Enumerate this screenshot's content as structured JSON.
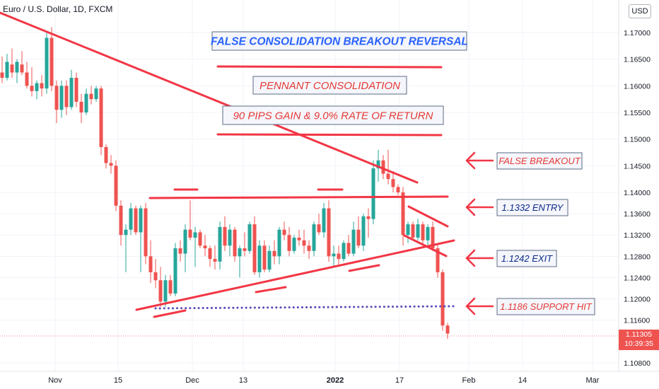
{
  "header": {
    "symbol_title": "Euro / U.S. Dollar, 1D, FXCM",
    "currency_button": "USD"
  },
  "last_price": {
    "value": "1.11305",
    "countdown": "10:39:35"
  },
  "colors": {
    "up": "#26a69a",
    "down": "#ef5350",
    "annotation_red": "#f23645",
    "support_dots": "#5b4ab5",
    "box_text_blue": "#2962ff",
    "box_text_red": "#e53935",
    "box_text_navy": "#0d2a8a"
  },
  "chart_data": {
    "type": "candlestick",
    "title": "FALSE CONSOLIDATION BREAKOUT REVERSAL",
    "y_axis": {
      "ticks": [
        "1.17000",
        "1.16500",
        "1.16000",
        "1.15500",
        "1.15000",
        "1.14500",
        "1.14000",
        "1.13600",
        "1.13200",
        "1.12800",
        "1.12400",
        "1.12000",
        "1.11600",
        "1.10800"
      ]
    },
    "x_axis": {
      "ticks": [
        "Nov",
        "15",
        "Dec",
        "13",
        "2022",
        "17",
        "Feb",
        "14",
        "Mar"
      ]
    },
    "ohlc": [
      {
        "o": 1.1625,
        "h": 1.1655,
        "l": 1.1605,
        "c": 1.1615
      },
      {
        "o": 1.1615,
        "h": 1.166,
        "l": 1.161,
        "c": 1.1645
      },
      {
        "o": 1.164,
        "h": 1.167,
        "l": 1.1615,
        "c": 1.1625
      },
      {
        "o": 1.1625,
        "h": 1.165,
        "l": 1.1605,
        "c": 1.1645
      },
      {
        "o": 1.164,
        "h": 1.1665,
        "l": 1.162,
        "c": 1.1625
      },
      {
        "o": 1.1625,
        "h": 1.1645,
        "l": 1.1595,
        "c": 1.16
      },
      {
        "o": 1.16,
        "h": 1.1635,
        "l": 1.158,
        "c": 1.159
      },
      {
        "o": 1.159,
        "h": 1.161,
        "l": 1.1575,
        "c": 1.1605
      },
      {
        "o": 1.1605,
        "h": 1.162,
        "l": 1.158,
        "c": 1.1595
      },
      {
        "o": 1.1595,
        "h": 1.17,
        "l": 1.1585,
        "c": 1.169
      },
      {
        "o": 1.169,
        "h": 1.171,
        "l": 1.159,
        "c": 1.16
      },
      {
        "o": 1.16,
        "h": 1.161,
        "l": 1.153,
        "c": 1.1555
      },
      {
        "o": 1.1555,
        "h": 1.161,
        "l": 1.154,
        "c": 1.16
      },
      {
        "o": 1.16,
        "h": 1.161,
        "l": 1.1545,
        "c": 1.156
      },
      {
        "o": 1.156,
        "h": 1.163,
        "l": 1.1555,
        "c": 1.1615
      },
      {
        "o": 1.1615,
        "h": 1.1625,
        "l": 1.156,
        "c": 1.157
      },
      {
        "o": 1.157,
        "h": 1.1585,
        "l": 1.153,
        "c": 1.155
      },
      {
        "o": 1.155,
        "h": 1.1595,
        "l": 1.1545,
        "c": 1.1585
      },
      {
        "o": 1.1585,
        "h": 1.16,
        "l": 1.1565,
        "c": 1.1575
      },
      {
        "o": 1.1575,
        "h": 1.16,
        "l": 1.157,
        "c": 1.1595
      },
      {
        "o": 1.1595,
        "h": 1.16,
        "l": 1.147,
        "c": 1.1485
      },
      {
        "o": 1.1485,
        "h": 1.149,
        "l": 1.1445,
        "c": 1.1455
      },
      {
        "o": 1.1455,
        "h": 1.147,
        "l": 1.1435,
        "c": 1.145
      },
      {
        "o": 1.145,
        "h": 1.146,
        "l": 1.1365,
        "c": 1.1375
      },
      {
        "o": 1.1375,
        "h": 1.1385,
        "l": 1.13,
        "c": 1.132
      },
      {
        "o": 1.132,
        "h": 1.134,
        "l": 1.125,
        "c": 1.133
      },
      {
        "o": 1.133,
        "h": 1.138,
        "l": 1.132,
        "c": 1.137
      },
      {
        "o": 1.137,
        "h": 1.1375,
        "l": 1.132,
        "c": 1.1325
      },
      {
        "o": 1.1325,
        "h": 1.1375,
        "l": 1.125,
        "c": 1.137
      },
      {
        "o": 1.137,
        "h": 1.138,
        "l": 1.1265,
        "c": 1.128
      },
      {
        "o": 1.128,
        "h": 1.131,
        "l": 1.123,
        "c": 1.125
      },
      {
        "o": 1.125,
        "h": 1.1275,
        "l": 1.122,
        "c": 1.1235
      },
      {
        "o": 1.1235,
        "h": 1.126,
        "l": 1.1185,
        "c": 1.1195
      },
      {
        "o": 1.1195,
        "h": 1.1245,
        "l": 1.1185,
        "c": 1.1235
      },
      {
        "o": 1.1235,
        "h": 1.1245,
        "l": 1.1205,
        "c": 1.121
      },
      {
        "o": 1.121,
        "h": 1.1305,
        "l": 1.1205,
        "c": 1.1295
      },
      {
        "o": 1.1295,
        "h": 1.131,
        "l": 1.127,
        "c": 1.1285
      },
      {
        "o": 1.1285,
        "h": 1.134,
        "l": 1.125,
        "c": 1.133
      },
      {
        "o": 1.133,
        "h": 1.1385,
        "l": 1.131,
        "c": 1.1315
      },
      {
        "o": 1.1315,
        "h": 1.1335,
        "l": 1.126,
        "c": 1.1325
      },
      {
        "o": 1.1325,
        "h": 1.133,
        "l": 1.1295,
        "c": 1.13
      },
      {
        "o": 1.13,
        "h": 1.132,
        "l": 1.128,
        "c": 1.1295
      },
      {
        "o": 1.1295,
        "h": 1.13,
        "l": 1.126,
        "c": 1.1275
      },
      {
        "o": 1.1275,
        "h": 1.13,
        "l": 1.1255,
        "c": 1.127
      },
      {
        "o": 1.127,
        "h": 1.1345,
        "l": 1.1255,
        "c": 1.1335
      },
      {
        "o": 1.1335,
        "h": 1.1355,
        "l": 1.129,
        "c": 1.13
      },
      {
        "o": 1.13,
        "h": 1.134,
        "l": 1.128,
        "c": 1.133
      },
      {
        "o": 1.133,
        "h": 1.1335,
        "l": 1.127,
        "c": 1.128
      },
      {
        "o": 1.128,
        "h": 1.13,
        "l": 1.124,
        "c": 1.1295
      },
      {
        "o": 1.1295,
        "h": 1.1325,
        "l": 1.128,
        "c": 1.129
      },
      {
        "o": 1.129,
        "h": 1.1345,
        "l": 1.1285,
        "c": 1.134
      },
      {
        "o": 1.134,
        "h": 1.1355,
        "l": 1.1245,
        "c": 1.125
      },
      {
        "o": 1.125,
        "h": 1.131,
        "l": 1.124,
        "c": 1.13
      },
      {
        "o": 1.13,
        "h": 1.131,
        "l": 1.125,
        "c": 1.1255
      },
      {
        "o": 1.1255,
        "h": 1.13,
        "l": 1.125,
        "c": 1.129
      },
      {
        "o": 1.129,
        "h": 1.131,
        "l": 1.1265,
        "c": 1.128
      },
      {
        "o": 1.128,
        "h": 1.1335,
        "l": 1.1265,
        "c": 1.133
      },
      {
        "o": 1.133,
        "h": 1.1345,
        "l": 1.131,
        "c": 1.132
      },
      {
        "o": 1.132,
        "h": 1.1335,
        "l": 1.128,
        "c": 1.129
      },
      {
        "o": 1.129,
        "h": 1.132,
        "l": 1.1285,
        "c": 1.1315
      },
      {
        "o": 1.1315,
        "h": 1.133,
        "l": 1.13,
        "c": 1.131
      },
      {
        "o": 1.131,
        "h": 1.133,
        "l": 1.1285,
        "c": 1.13
      },
      {
        "o": 1.13,
        "h": 1.131,
        "l": 1.1275,
        "c": 1.129
      },
      {
        "o": 1.129,
        "h": 1.1345,
        "l": 1.128,
        "c": 1.134
      },
      {
        "o": 1.134,
        "h": 1.136,
        "l": 1.132,
        "c": 1.1325
      },
      {
        "o": 1.1325,
        "h": 1.138,
        "l": 1.1315,
        "c": 1.137
      },
      {
        "o": 1.137,
        "h": 1.1385,
        "l": 1.127,
        "c": 1.128
      },
      {
        "o": 1.128,
        "h": 1.13,
        "l": 1.126,
        "c": 1.1285
      },
      {
        "o": 1.1285,
        "h": 1.13,
        "l": 1.1265,
        "c": 1.1275
      },
      {
        "o": 1.1275,
        "h": 1.131,
        "l": 1.127,
        "c": 1.1305
      },
      {
        "o": 1.1305,
        "h": 1.132,
        "l": 1.128,
        "c": 1.1285
      },
      {
        "o": 1.1285,
        "h": 1.1345,
        "l": 1.128,
        "c": 1.133
      },
      {
        "o": 1.133,
        "h": 1.1355,
        "l": 1.1295,
        "c": 1.13
      },
      {
        "o": 1.13,
        "h": 1.136,
        "l": 1.129,
        "c": 1.1355
      },
      {
        "o": 1.1355,
        "h": 1.137,
        "l": 1.1315,
        "c": 1.135
      },
      {
        "o": 1.135,
        "h": 1.146,
        "l": 1.134,
        "c": 1.1445
      },
      {
        "o": 1.1445,
        "h": 1.148,
        "l": 1.142,
        "c": 1.146
      },
      {
        "o": 1.146,
        "h": 1.147,
        "l": 1.1425,
        "c": 1.1435
      },
      {
        "o": 1.1435,
        "h": 1.148,
        "l": 1.1415,
        "c": 1.1425
      },
      {
        "o": 1.1425,
        "h": 1.144,
        "l": 1.14,
        "c": 1.141
      },
      {
        "o": 1.141,
        "h": 1.1415,
        "l": 1.1395,
        "c": 1.14
      },
      {
        "o": 1.14,
        "h": 1.141,
        "l": 1.13,
        "c": 1.132
      },
      {
        "o": 1.132,
        "h": 1.1345,
        "l": 1.1305,
        "c": 1.134
      },
      {
        "o": 1.134,
        "h": 1.1345,
        "l": 1.131,
        "c": 1.1315
      },
      {
        "o": 1.1315,
        "h": 1.135,
        "l": 1.131,
        "c": 1.134
      },
      {
        "o": 1.134,
        "h": 1.1345,
        "l": 1.13,
        "c": 1.131
      },
      {
        "o": 1.131,
        "h": 1.134,
        "l": 1.13,
        "c": 1.1335
      },
      {
        "o": 1.1335,
        "h": 1.1345,
        "l": 1.129,
        "c": 1.1295
      },
      {
        "o": 1.1295,
        "h": 1.1305,
        "l": 1.124,
        "c": 1.125
      },
      {
        "o": 1.125,
        "h": 1.1255,
        "l": 1.114,
        "c": 1.115
      },
      {
        "o": 1.115,
        "h": 1.1155,
        "l": 1.1125,
        "c": 1.1135
      }
    ],
    "current_price": 1.11305,
    "annotations": [
      {
        "text": "FALSE CONSOLIDATION BREAKOUT REVERSAL",
        "style": "blue"
      },
      {
        "text": "PENNANT CONSOLIDATION",
        "style": "red"
      },
      {
        "text": "90 PIPS GAIN & 9.0% RATE OF RETURN",
        "style": "red"
      },
      {
        "text": "FALSE BREAKOUT",
        "style": "red"
      },
      {
        "text": "1.1332 ENTRY",
        "style": "navy"
      },
      {
        "text": "1.1242 EXIT",
        "style": "navy"
      },
      {
        "text": "1.1186 SUPPORT HIT",
        "style": "red"
      }
    ],
    "grid": true
  }
}
